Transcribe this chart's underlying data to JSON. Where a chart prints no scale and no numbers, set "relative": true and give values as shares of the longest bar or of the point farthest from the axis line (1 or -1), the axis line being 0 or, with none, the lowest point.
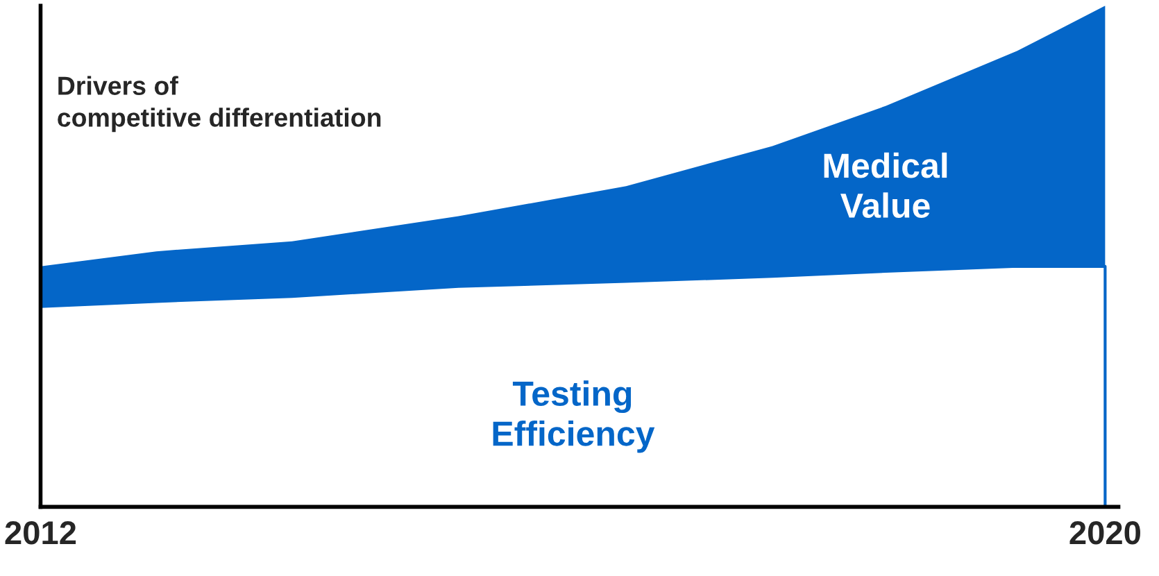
{
  "chart_data": {
    "type": "area",
    "ylabel": "Drivers of\ncompetitive differentiation",
    "relative": true,
    "stacked": true,
    "x": [
      2012,
      2012.87,
      2013.89,
      2015.14,
      2016.4,
      2017.5,
      2018.35,
      2019.34,
      2020
    ],
    "xlim": [
      2012,
      2020.1
    ],
    "xticks": [
      2012,
      2020
    ],
    "grid": false,
    "legend": false,
    "series": [
      {
        "name": "Testing\nEfficiency",
        "color": "#ffffff",
        "values": [
          0.4,
          0.41,
          0.42,
          0.44,
          0.45,
          0.46,
          0.47,
          0.48,
          0.48
        ]
      },
      {
        "name": "Medical\nValue",
        "color": "#0466c8",
        "values": [
          0.08,
          0.1,
          0.11,
          0.14,
          0.19,
          0.26,
          0.33,
          0.43,
          0.52
        ]
      }
    ]
  }
}
